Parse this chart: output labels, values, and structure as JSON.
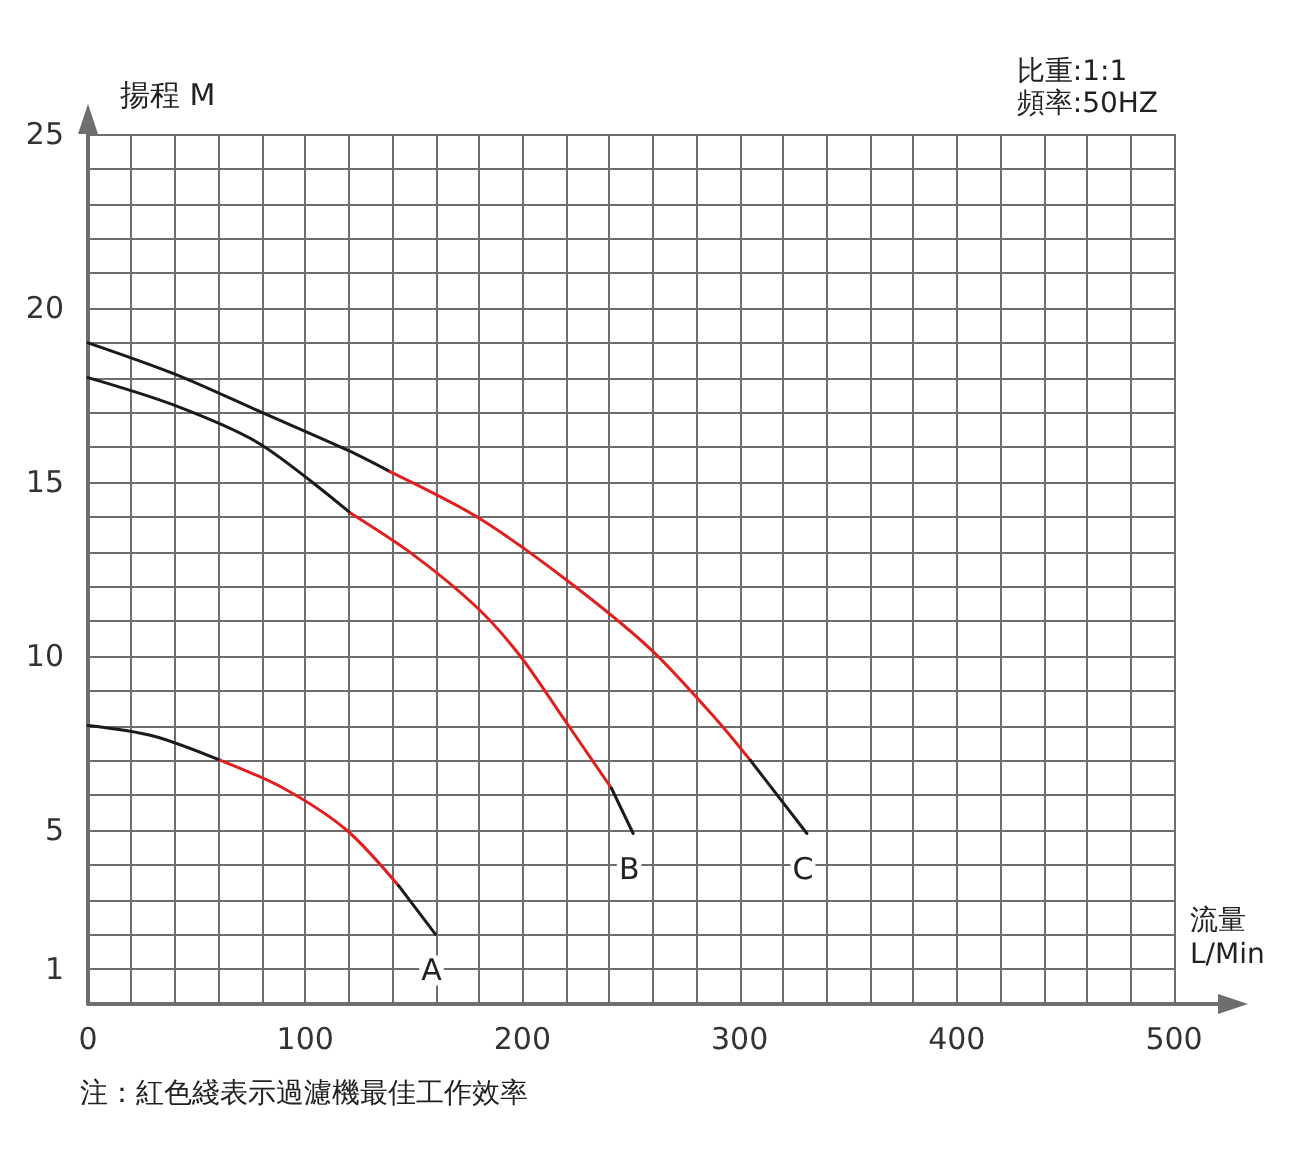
{
  "chart_data": {
    "type": "line",
    "xlabel": "流量\nL/Min",
    "ylabel": "揚程 M",
    "xlim": [
      0,
      500
    ],
    "xticks": [
      0,
      100,
      200,
      300,
      400,
      500
    ],
    "ylim": [
      0,
      25
    ],
    "yticks": [
      1,
      5,
      10,
      15,
      20,
      25
    ],
    "grid": true,
    "marker": "none",
    "line_style": "solid",
    "legend": false,
    "series": [
      {
        "color": "#1a1a1a",
        "x": [
          0,
          30,
          61
        ],
        "values": [
          8,
          7.7,
          7
        ]
      },
      {
        "color": "#e0201e",
        "x": [
          61,
          90,
          119,
          143
        ],
        "values": [
          7,
          6.2,
          5,
          3.4
        ]
      },
      {
        "name": "A",
        "color": "#1a1a1a",
        "x": [
          143,
          160
        ],
        "values": [
          3.4,
          2
        ]
      },
      {
        "color": "#1a1a1a",
        "x": [
          0,
          40,
          79,
          121
        ],
        "values": [
          18,
          17.2,
          16.1,
          14.1
        ]
      },
      {
        "color": "#e0201e",
        "x": [
          121,
          150,
          179,
          199,
          219,
          241
        ],
        "values": [
          14.1,
          12.9,
          11.4,
          10,
          8.2,
          6.2
        ]
      },
      {
        "name": "B",
        "color": "#1a1a1a",
        "x": [
          241,
          251
        ],
        "values": [
          6.2,
          4.9
        ]
      },
      {
        "color": "#1a1a1a",
        "x": [
          0,
          40,
          80,
          120,
          139
        ],
        "values": [
          19,
          18.1,
          17,
          15.9,
          15.3
        ]
      },
      {
        "color": "#e0201e",
        "x": [
          139,
          179,
          220,
          259,
          289,
          305
        ],
        "values": [
          15.3,
          14,
          12.2,
          10.2,
          8.2,
          7
        ]
      },
      {
        "name": "C",
        "color": "#1a1a1a",
        "x": [
          305,
          331
        ],
        "values": [
          7,
          4.9
        ]
      }
    ],
    "annotations": [
      "比重:1:1\n頻率:50HZ",
      "注：紅色綫表示過濾機最佳工作效率"
    ]
  }
}
